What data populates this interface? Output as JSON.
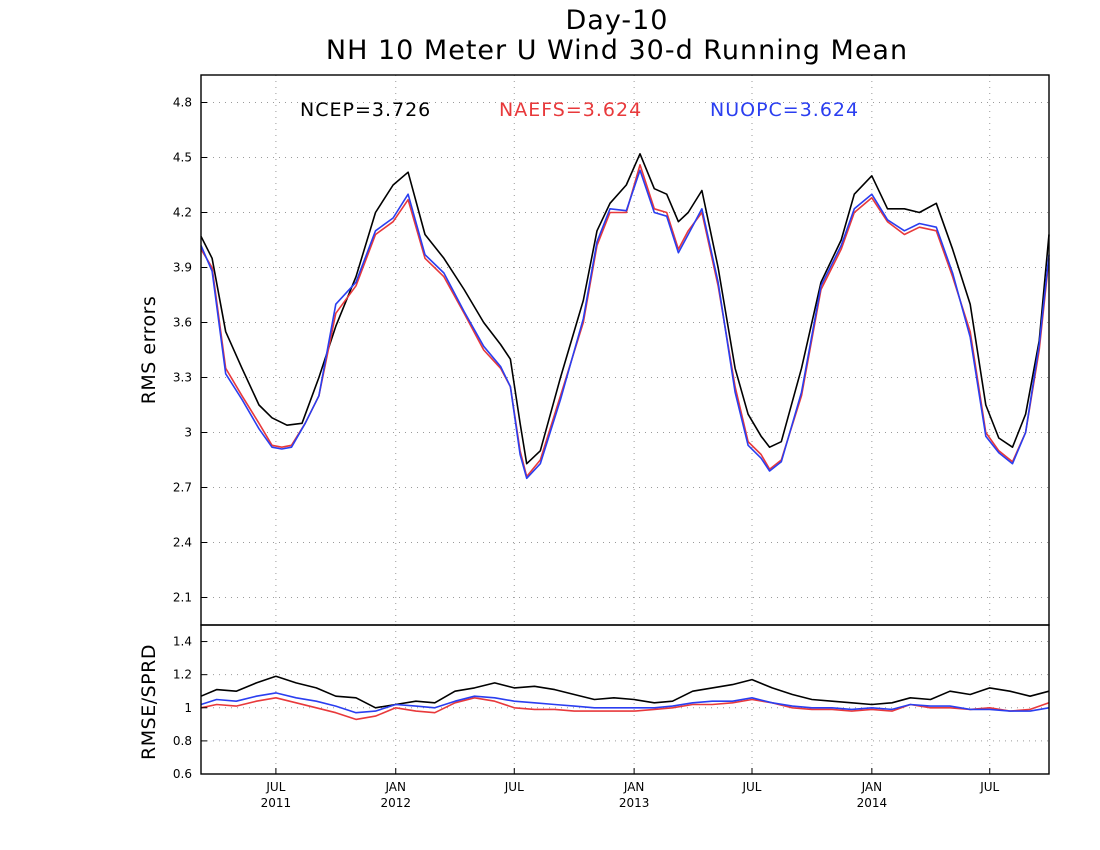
{
  "colors": {
    "NCEP": "#000000",
    "NAEFS": "#e8393b",
    "NUOPC": "#2a3ef0"
  },
  "chart_data": [
    {
      "type": "line",
      "title": "Day-10",
      "subtitle": "NH 10 Meter U Wind 30-d Running Mean",
      "ylabel": "RMS errors",
      "ylim": [
        1.95,
        4.95
      ],
      "yticks": [
        "2.1",
        "2.4",
        "2.7",
        "3",
        "3.3",
        "3.6",
        "3.9",
        "4.2",
        "4.5",
        "4.8"
      ],
      "xlim": [
        "2011-03-08",
        "2014-09-30"
      ],
      "grid": true,
      "legend_position": "top",
      "legend": [
        "NCEP=3.726",
        "NAEFS=3.624",
        "NUOPC=3.624"
      ],
      "series": [
        {
          "name": "NCEP",
          "x": [
            "2011-03-08",
            "2011-03-25",
            "2011-04-15",
            "2011-05-10",
            "2011-06-05",
            "2011-06-25",
            "2011-07-18",
            "2011-08-10",
            "2011-09-05",
            "2011-10-01",
            "2011-11-01",
            "2011-12-01",
            "2011-12-28",
            "2012-01-20",
            "2012-02-15",
            "2012-03-15",
            "2012-04-15",
            "2012-05-15",
            "2012-06-10",
            "2012-06-25",
            "2012-07-10",
            "2012-07-20",
            "2012-08-10",
            "2012-09-10",
            "2012-10-15",
            "2012-11-05",
            "2012-11-25",
            "2012-12-20",
            "2013-01-10",
            "2013-02-01",
            "2013-02-20",
            "2013-03-10",
            "2013-03-25",
            "2013-04-15",
            "2013-05-10",
            "2013-06-05",
            "2013-06-25",
            "2013-07-15",
            "2013-07-28",
            "2013-08-15",
            "2013-09-15",
            "2013-10-15",
            "2013-11-15",
            "2013-12-05",
            "2014-01-01",
            "2014-01-25",
            "2014-02-20",
            "2014-03-15",
            "2014-04-10",
            "2014-05-05",
            "2014-06-01",
            "2014-06-25",
            "2014-07-15",
            "2014-08-05",
            "2014-08-25",
            "2014-09-15",
            "2014-09-30"
          ],
          "y": [
            4.07,
            3.95,
            3.55,
            3.35,
            3.15,
            3.08,
            3.04,
            3.05,
            3.3,
            3.58,
            3.85,
            4.2,
            4.35,
            4.42,
            4.08,
            3.95,
            3.78,
            3.6,
            3.48,
            3.4,
            3.05,
            2.83,
            2.9,
            3.3,
            3.72,
            4.1,
            4.25,
            4.35,
            4.52,
            4.33,
            4.3,
            4.15,
            4.2,
            4.32,
            3.9,
            3.35,
            3.1,
            2.98,
            2.92,
            2.95,
            3.35,
            3.82,
            4.05,
            4.3,
            4.4,
            4.22,
            4.22,
            4.2,
            4.25,
            4.0,
            3.7,
            3.15,
            2.97,
            2.92,
            3.1,
            3.5,
            4.08
          ]
        },
        {
          "name": "NAEFS",
          "x": [
            "2011-03-08",
            "2011-03-25",
            "2011-04-15",
            "2011-05-10",
            "2011-06-05",
            "2011-06-25",
            "2011-07-10",
            "2011-07-25",
            "2011-08-15",
            "2011-09-05",
            "2011-10-01",
            "2011-11-01",
            "2011-12-01",
            "2011-12-28",
            "2012-01-20",
            "2012-02-15",
            "2012-03-15",
            "2012-04-15",
            "2012-05-15",
            "2012-06-10",
            "2012-06-25",
            "2012-07-10",
            "2012-07-20",
            "2012-08-10",
            "2012-09-10",
            "2012-10-15",
            "2012-11-05",
            "2012-11-25",
            "2012-12-20",
            "2013-01-10",
            "2013-02-01",
            "2013-02-20",
            "2013-03-10",
            "2013-03-25",
            "2013-04-15",
            "2013-05-10",
            "2013-06-05",
            "2013-06-25",
            "2013-07-15",
            "2013-07-28",
            "2013-08-15",
            "2013-09-15",
            "2013-10-15",
            "2013-11-15",
            "2013-12-05",
            "2014-01-01",
            "2014-01-25",
            "2014-02-20",
            "2014-03-15",
            "2014-04-10",
            "2014-05-05",
            "2014-06-01",
            "2014-06-25",
            "2014-07-15",
            "2014-08-05",
            "2014-08-25",
            "2014-09-15",
            "2014-09-30"
          ],
          "y": [
            4.0,
            3.9,
            3.35,
            3.2,
            3.05,
            2.93,
            2.92,
            2.93,
            3.05,
            3.2,
            3.65,
            3.8,
            4.08,
            4.15,
            4.27,
            3.95,
            3.85,
            3.65,
            3.45,
            3.35,
            3.25,
            2.9,
            2.76,
            2.85,
            3.2,
            3.6,
            4.02,
            4.2,
            4.2,
            4.46,
            4.22,
            4.2,
            4.0,
            4.1,
            4.2,
            3.8,
            3.25,
            2.95,
            2.88,
            2.8,
            2.85,
            3.2,
            3.78,
            4.0,
            4.2,
            4.28,
            4.15,
            4.08,
            4.12,
            4.1,
            3.85,
            3.55,
            3.0,
            2.9,
            2.84,
            3.0,
            3.45,
            3.95
          ]
        },
        {
          "name": "NUOPC",
          "x": [
            "2011-03-08",
            "2011-03-25",
            "2011-04-15",
            "2011-05-10",
            "2011-06-05",
            "2011-06-25",
            "2011-07-10",
            "2011-07-25",
            "2011-08-15",
            "2011-09-05",
            "2011-10-01",
            "2011-11-01",
            "2011-12-01",
            "2011-12-28",
            "2012-01-20",
            "2012-02-15",
            "2012-03-15",
            "2012-04-15",
            "2012-05-15",
            "2012-06-10",
            "2012-06-25",
            "2012-07-10",
            "2012-07-20",
            "2012-08-10",
            "2012-09-10",
            "2012-10-15",
            "2012-11-05",
            "2012-11-25",
            "2012-12-20",
            "2013-01-10",
            "2013-02-01",
            "2013-02-20",
            "2013-03-10",
            "2013-03-25",
            "2013-04-15",
            "2013-05-10",
            "2013-06-05",
            "2013-06-25",
            "2013-07-15",
            "2013-07-28",
            "2013-08-15",
            "2013-09-15",
            "2013-10-15",
            "2013-11-15",
            "2013-12-05",
            "2014-01-01",
            "2014-01-25",
            "2014-02-20",
            "2014-03-15",
            "2014-04-10",
            "2014-05-05",
            "2014-06-01",
            "2014-06-25",
            "2014-07-15",
            "2014-08-05",
            "2014-08-25",
            "2014-09-15",
            "2014-09-30"
          ],
          "y": [
            4.02,
            3.88,
            3.32,
            3.18,
            3.02,
            2.92,
            2.91,
            2.92,
            3.05,
            3.2,
            3.7,
            3.82,
            4.1,
            4.17,
            4.3,
            3.97,
            3.87,
            3.66,
            3.47,
            3.36,
            3.25,
            2.88,
            2.75,
            2.83,
            3.18,
            3.62,
            4.04,
            4.22,
            4.21,
            4.43,
            4.2,
            4.18,
            3.98,
            4.08,
            4.22,
            3.82,
            3.22,
            2.93,
            2.86,
            2.79,
            2.84,
            3.22,
            3.8,
            4.02,
            4.22,
            4.3,
            4.16,
            4.1,
            4.14,
            4.12,
            3.87,
            3.52,
            2.98,
            2.89,
            2.83,
            3.0,
            3.48,
            3.97
          ]
        }
      ]
    },
    {
      "type": "line",
      "ylabel": "RMSE/SPRD",
      "ylim": [
        0.6,
        1.5
      ],
      "yticks": [
        "0.6",
        "0.8",
        "1",
        "1.2",
        "1.4"
      ],
      "xlim": [
        "2011-03-08",
        "2014-09-30"
      ],
      "xticks": [
        "2011-07-01",
        "2012-01-01",
        "2012-07-01",
        "2013-01-01",
        "2013-07-01",
        "2014-01-01",
        "2014-07-01"
      ],
      "xtick_labels": [
        {
          "month": "JUL",
          "year": "2011"
        },
        {
          "month": "JAN",
          "year": "2012"
        },
        {
          "month": "JUL",
          "year": ""
        },
        {
          "month": "JAN",
          "year": "2013"
        },
        {
          "month": "JUL",
          "year": ""
        },
        {
          "month": "JAN",
          "year": "2014"
        },
        {
          "month": "JUL",
          "year": ""
        }
      ],
      "grid": true,
      "series": [
        {
          "name": "NCEP",
          "x": [
            "2011-03-08",
            "2011-04-01",
            "2011-05-01",
            "2011-06-01",
            "2011-07-01",
            "2011-08-01",
            "2011-09-01",
            "2011-10-01",
            "2011-11-01",
            "2011-12-01",
            "2012-01-01",
            "2012-02-01",
            "2012-03-01",
            "2012-04-01",
            "2012-05-01",
            "2012-06-01",
            "2012-07-01",
            "2012-08-01",
            "2012-09-01",
            "2012-10-01",
            "2012-11-01",
            "2012-12-01",
            "2013-01-01",
            "2013-02-01",
            "2013-03-01",
            "2013-04-01",
            "2013-05-01",
            "2013-06-01",
            "2013-07-01",
            "2013-08-01",
            "2013-09-01",
            "2013-10-01",
            "2013-11-01",
            "2013-12-01",
            "2014-01-01",
            "2014-02-01",
            "2014-03-01",
            "2014-04-01",
            "2014-05-01",
            "2014-06-01",
            "2014-07-01",
            "2014-08-01",
            "2014-09-01",
            "2014-09-30"
          ],
          "y": [
            1.07,
            1.11,
            1.1,
            1.15,
            1.19,
            1.15,
            1.12,
            1.07,
            1.06,
            1.0,
            1.02,
            1.04,
            1.03,
            1.1,
            1.12,
            1.15,
            1.12,
            1.13,
            1.11,
            1.08,
            1.05,
            1.06,
            1.05,
            1.03,
            1.04,
            1.1,
            1.12,
            1.14,
            1.17,
            1.12,
            1.08,
            1.05,
            1.04,
            1.03,
            1.02,
            1.03,
            1.06,
            1.05,
            1.1,
            1.08,
            1.12,
            1.1,
            1.07,
            1.1
          ]
        },
        {
          "name": "NAEFS",
          "x": [
            "2011-03-08",
            "2011-04-01",
            "2011-05-01",
            "2011-06-01",
            "2011-07-01",
            "2011-08-01",
            "2011-09-01",
            "2011-10-01",
            "2011-11-01",
            "2011-12-01",
            "2012-01-01",
            "2012-02-01",
            "2012-03-01",
            "2012-04-01",
            "2012-05-01",
            "2012-06-01",
            "2012-07-01",
            "2012-08-01",
            "2012-09-01",
            "2012-10-01",
            "2012-11-01",
            "2012-12-01",
            "2013-01-01",
            "2013-02-01",
            "2013-03-01",
            "2013-04-01",
            "2013-05-01",
            "2013-06-01",
            "2013-07-01",
            "2013-08-01",
            "2013-09-01",
            "2013-10-01",
            "2013-11-01",
            "2013-12-01",
            "2014-01-01",
            "2014-02-01",
            "2014-03-01",
            "2014-04-01",
            "2014-05-01",
            "2014-06-01",
            "2014-07-01",
            "2014-08-01",
            "2014-09-01",
            "2014-09-30"
          ],
          "y": [
            1.0,
            1.02,
            1.01,
            1.04,
            1.06,
            1.03,
            1.0,
            0.97,
            0.93,
            0.95,
            1.0,
            0.98,
            0.97,
            1.03,
            1.06,
            1.04,
            1.0,
            0.99,
            0.99,
            0.98,
            0.98,
            0.98,
            0.98,
            0.99,
            1.0,
            1.02,
            1.02,
            1.03,
            1.05,
            1.03,
            1.0,
            0.99,
            0.99,
            0.98,
            0.99,
            0.98,
            1.02,
            1.0,
            1.0,
            0.99,
            1.0,
            0.98,
            0.99,
            1.03
          ]
        },
        {
          "name": "NUOPC",
          "x": [
            "2011-03-08",
            "2011-04-01",
            "2011-05-01",
            "2011-06-01",
            "2011-07-01",
            "2011-08-01",
            "2011-09-01",
            "2011-10-01",
            "2011-11-01",
            "2011-12-01",
            "2012-01-01",
            "2012-02-01",
            "2012-03-01",
            "2012-04-01",
            "2012-05-01",
            "2012-06-01",
            "2012-07-01",
            "2012-08-01",
            "2012-09-01",
            "2012-10-01",
            "2012-11-01",
            "2012-12-01",
            "2013-01-01",
            "2013-02-01",
            "2013-03-01",
            "2013-04-01",
            "2013-05-01",
            "2013-06-01",
            "2013-07-01",
            "2013-08-01",
            "2013-09-01",
            "2013-10-01",
            "2013-11-01",
            "2013-12-01",
            "2014-01-01",
            "2014-02-01",
            "2014-03-01",
            "2014-04-01",
            "2014-05-01",
            "2014-06-01",
            "2014-07-01",
            "2014-08-01",
            "2014-09-01",
            "2014-09-30"
          ],
          "y": [
            1.02,
            1.05,
            1.04,
            1.07,
            1.09,
            1.06,
            1.04,
            1.01,
            0.97,
            0.98,
            1.02,
            1.01,
            1.0,
            1.04,
            1.07,
            1.06,
            1.04,
            1.03,
            1.02,
            1.01,
            1.0,
            1.0,
            1.0,
            1.0,
            1.01,
            1.03,
            1.04,
            1.04,
            1.06,
            1.03,
            1.01,
            1.0,
            1.0,
            0.99,
            1.0,
            0.99,
            1.02,
            1.01,
            1.01,
            0.99,
            0.99,
            0.98,
            0.98,
            1.0
          ]
        }
      ]
    }
  ]
}
